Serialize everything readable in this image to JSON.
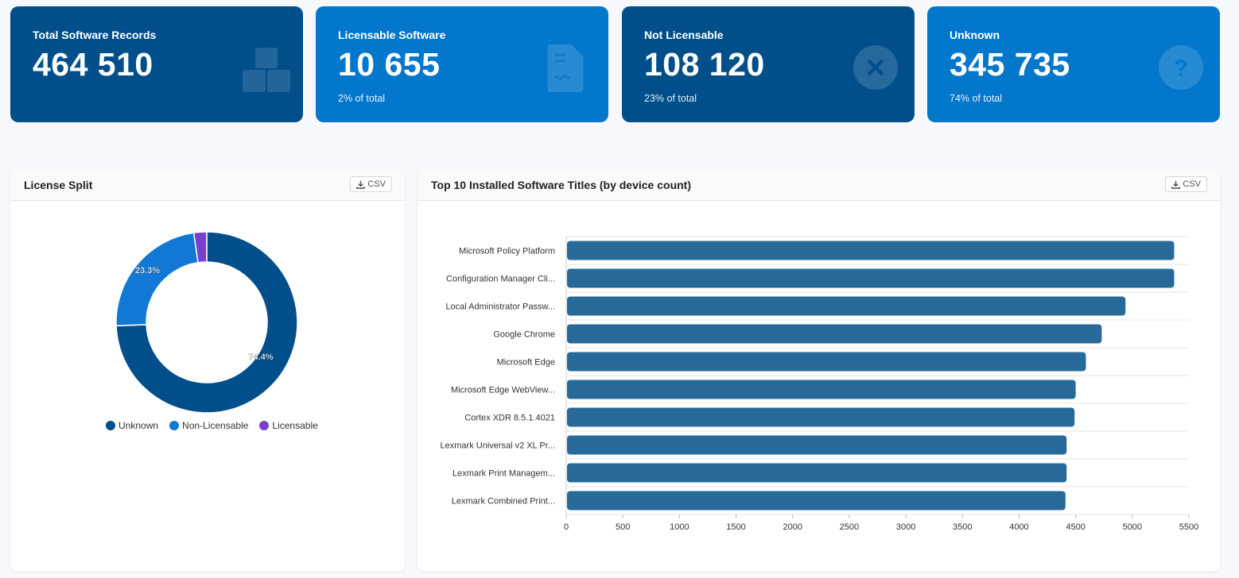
{
  "cards": [
    {
      "title": "Total Software Records",
      "value": "464 510",
      "sub": "",
      "color": "#004f8b",
      "icon": "boxes-icon"
    },
    {
      "title": "Licensable Software",
      "value": "10 655",
      "sub": "2% of total",
      "color": "#0277cc",
      "icon": "document-signature-icon"
    },
    {
      "title": "Not Licensable",
      "value": "108 120",
      "sub": "23% of total",
      "color": "#004f8b",
      "icon": "x-circle-icon"
    },
    {
      "title": "Unknown",
      "value": "345 735",
      "sub": "74% of total",
      "color": "#0277cc",
      "icon": "question-circle-icon"
    }
  ],
  "license_panel": {
    "title": "License Split",
    "csv_label": "CSV"
  },
  "top10_panel": {
    "title": "Top 10 Installed Software Titles (by device count)",
    "csv_label": "CSV"
  },
  "chart_data": [
    {
      "type": "pie",
      "labels": [
        "Unknown",
        "Non-Licensable",
        "Licensable"
      ],
      "values": [
        74.4,
        23.3,
        2.3
      ],
      "data_labels": [
        "74.4%",
        "23.3%",
        ""
      ],
      "colors": [
        "#004f8b",
        "#1178d6",
        "#7b3fd0"
      ],
      "legend": "bottom"
    },
    {
      "type": "bar",
      "orientation": "horizontal",
      "categories": [
        "Microsoft Policy Platform",
        "Configuration Manager Cli...",
        "Local Administrator Passw...",
        "Google Chrome",
        "Microsoft Edge",
        "Microsoft Edge WebView...",
        "Cortex XDR 8.5.1.4021",
        "Lexmark Universal v2 XL Pr...",
        "Lexmark Print Managem...",
        "Lexmark Combined Print..."
      ],
      "values": [
        5370,
        5370,
        4940,
        4730,
        4590,
        4500,
        4490,
        4420,
        4420,
        4410
      ],
      "xlim": [
        0,
        5500
      ],
      "xticks": [
        0,
        500,
        1000,
        1500,
        2000,
        2500,
        3000,
        3500,
        4000,
        4500,
        5000,
        5500
      ],
      "color": "#276a99",
      "grid": true
    }
  ]
}
